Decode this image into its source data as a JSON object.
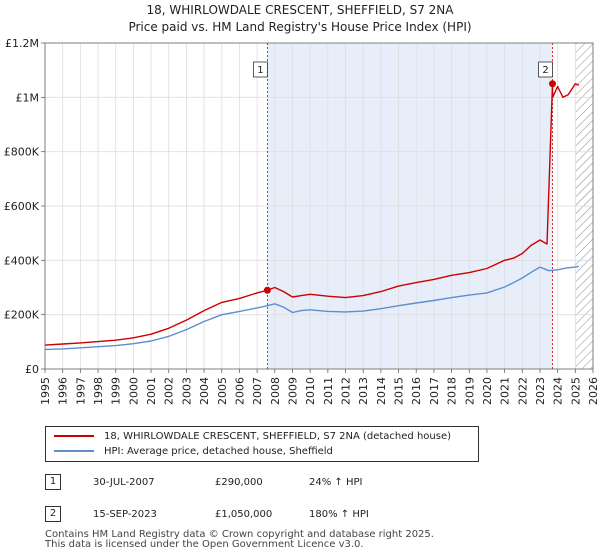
{
  "chart_data": {
    "type": "line",
    "title_line1": "18, WHIRLOWDALE CRESCENT, SHEFFIELD, S7 2NA",
    "title_line2": "Price paid vs. HM Land Registry's House Price Index (HPI)",
    "xlim": [
      1995,
      2026
    ],
    "ylim": [
      0,
      1200000
    ],
    "x_ticks": [
      1995,
      1996,
      1997,
      1998,
      1999,
      2000,
      2001,
      2002,
      2003,
      2004,
      2005,
      2006,
      2007,
      2008,
      2009,
      2010,
      2011,
      2012,
      2013,
      2014,
      2015,
      2016,
      2017,
      2018,
      2019,
      2020,
      2021,
      2022,
      2023,
      2024,
      2025,
      2026
    ],
    "y_ticks": [
      {
        "value": 0,
        "label": "£0"
      },
      {
        "value": 200000,
        "label": "£200K"
      },
      {
        "value": 400000,
        "label": "£400K"
      },
      {
        "value": 600000,
        "label": "£600K"
      },
      {
        "value": 800000,
        "label": "£800K"
      },
      {
        "value": 1000000,
        "label": "£1M"
      },
      {
        "value": 1200000,
        "label": "£1.2M"
      }
    ],
    "shaded_period": [
      2007.58,
      2023.71
    ],
    "future_hatch_from": 2025.0,
    "series": [
      {
        "name": "18, WHIRLOWDALE CRESCENT, SHEFFIELD, S7 2NA (detached house)",
        "color": "#cc0000",
        "x": [
          1995,
          1996,
          1997,
          1998,
          1999,
          2000,
          2001,
          2002,
          2003,
          2004,
          2005,
          2006,
          2007,
          2007.58,
          2008,
          2008.5,
          2009,
          2009.5,
          2010,
          2011,
          2012,
          2013,
          2014,
          2015,
          2016,
          2017,
          2018,
          2019,
          2020,
          2021,
          2021.5,
          2022,
          2022.5,
          2023,
          2023.4,
          2023.71,
          2023.72,
          2024,
          2024.3,
          2024.6,
          2025,
          2025.2
        ],
        "values": [
          88000,
          92000,
          96000,
          101000,
          106000,
          115000,
          128000,
          150000,
          180000,
          215000,
          245000,
          260000,
          280000,
          290000,
          300000,
          285000,
          265000,
          270000,
          275000,
          268000,
          263000,
          270000,
          285000,
          305000,
          318000,
          330000,
          345000,
          355000,
          370000,
          400000,
          408000,
          425000,
          455000,
          475000,
          460000,
          1050000,
          1000000,
          1040000,
          1000000,
          1010000,
          1050000,
          1045000
        ]
      },
      {
        "name": "HPI: Average price, detached house, Sheffield",
        "color": "#5b8fcf",
        "x": [
          1995,
          1996,
          1997,
          1998,
          1999,
          2000,
          2001,
          2002,
          2003,
          2004,
          2005,
          2006,
          2007,
          2007.58,
          2008,
          2008.5,
          2009,
          2009.5,
          2010,
          2011,
          2012,
          2013,
          2014,
          2015,
          2016,
          2017,
          2018,
          2019,
          2020,
          2021,
          2021.5,
          2022,
          2022.5,
          2023,
          2023.5,
          2024,
          2024.5,
          2025,
          2025.2
        ],
        "values": [
          72000,
          74000,
          78000,
          82000,
          86000,
          93000,
          103000,
          120000,
          145000,
          175000,
          200000,
          212000,
          225000,
          233000,
          240000,
          228000,
          208000,
          215000,
          218000,
          212000,
          210000,
          213000,
          222000,
          233000,
          243000,
          252000,
          263000,
          272000,
          280000,
          302000,
          318000,
          335000,
          356000,
          375000,
          362000,
          365000,
          372000,
          375000,
          378000
        ]
      }
    ],
    "annotations": [
      {
        "id": "1",
        "x": 2007.58,
        "value": 290000
      },
      {
        "id": "2",
        "x": 2023.71,
        "value": 1050000
      }
    ]
  },
  "legend": {
    "items": [
      {
        "label": "18, WHIRLOWDALE CRESCENT, SHEFFIELD, S7 2NA (detached house)",
        "color": "#cc0000"
      },
      {
        "label": "HPI: Average price, detached house, Sheffield",
        "color": "#5b8fcf"
      }
    ]
  },
  "table": {
    "rows": [
      {
        "num": "1",
        "date": "30-JUL-2007",
        "price": "£290,000",
        "hpi": "24% ↑ HPI"
      },
      {
        "num": "2",
        "date": "15-SEP-2023",
        "price": "£1,050,000",
        "hpi": "180% ↑ HPI"
      }
    ]
  },
  "footer": {
    "line1": "Contains HM Land Registry data © Crown copyright and database right 2025.",
    "line2": "This data is licensed under the Open Government Licence v3.0."
  }
}
